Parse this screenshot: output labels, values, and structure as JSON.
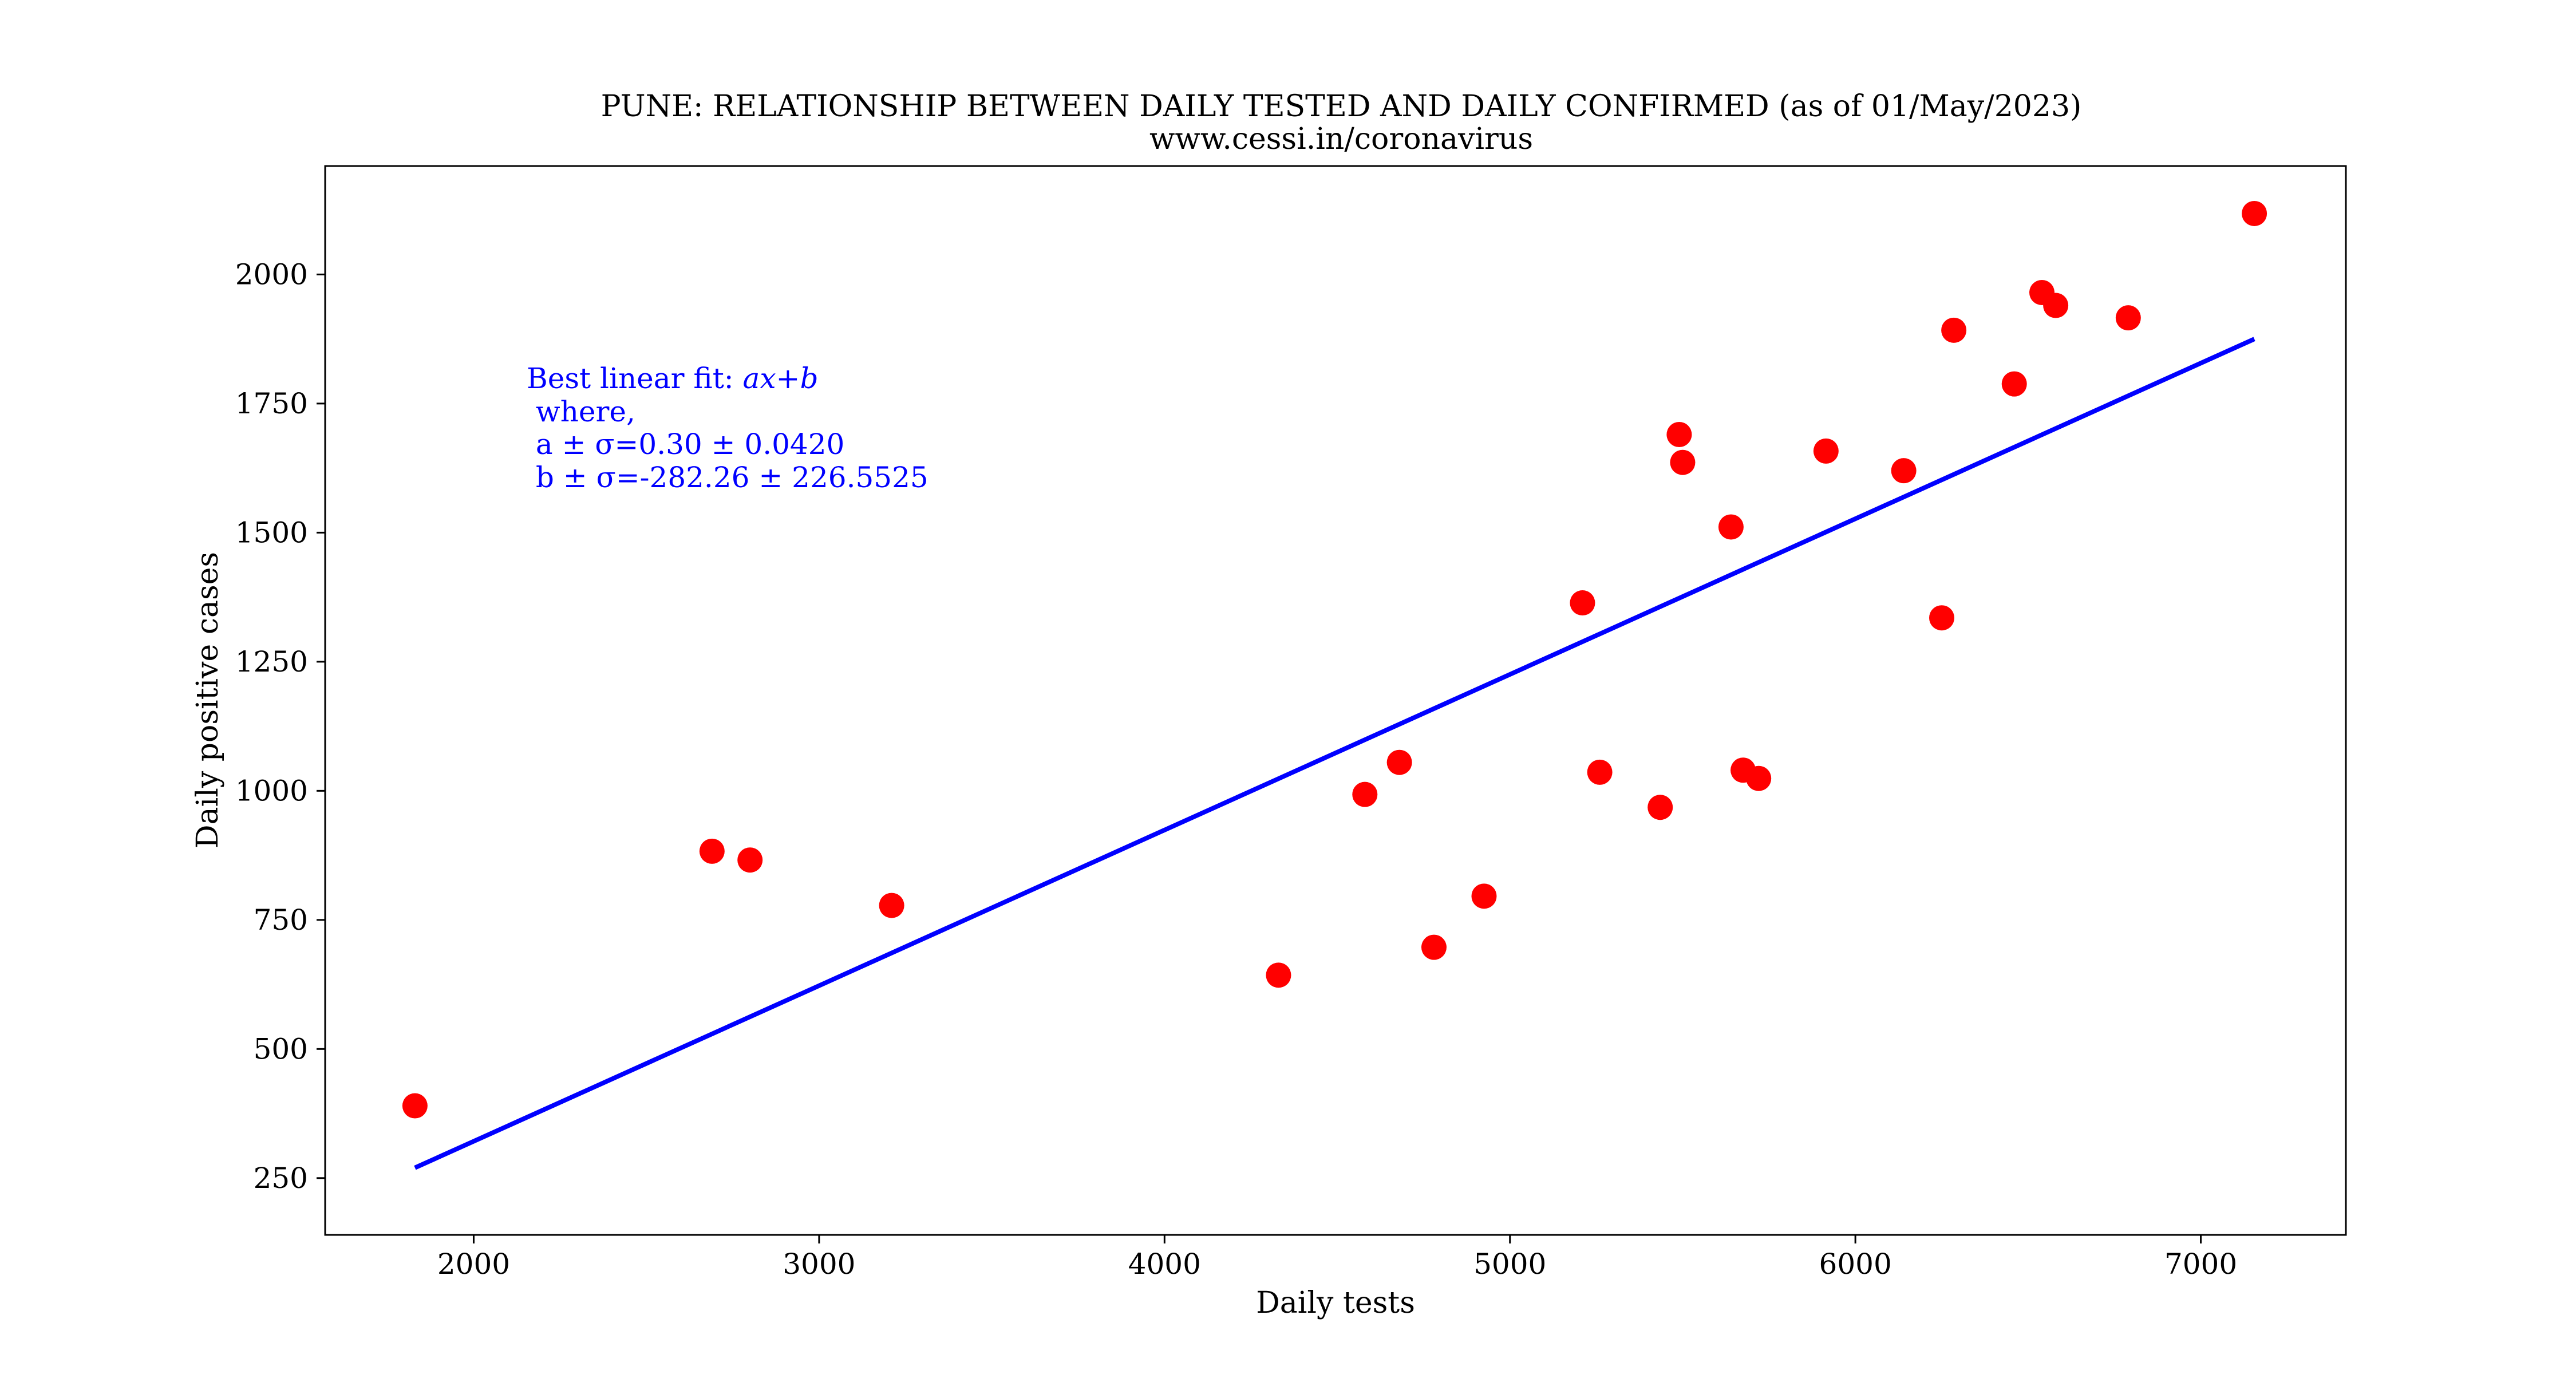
{
  "chart_data": {
    "type": "scatter",
    "title": "PUNE: RELATIONSHIP BETWEEN DAILY TESTED AND DAILY CONFIRMED (as of 01/May/2023)",
    "subtitle": "www.cessi.in/coronavirus",
    "xlabel": "Daily tests",
    "ylabel": "Daily positive cases",
    "xlim": [
      1570,
      7420
    ],
    "ylim": [
      140,
      2210
    ],
    "xticks": [
      2000,
      3000,
      4000,
      5000,
      6000,
      7000
    ],
    "yticks": [
      250,
      500,
      750,
      1000,
      1250,
      1500,
      1750,
      2000
    ],
    "grid": false,
    "marker_color": "#ff0000",
    "fit_color": "#0000ff",
    "points": [
      {
        "x": 1830,
        "y": 390
      },
      {
        "x": 2690,
        "y": 883
      },
      {
        "x": 2800,
        "y": 866
      },
      {
        "x": 3210,
        "y": 778
      },
      {
        "x": 4330,
        "y": 643
      },
      {
        "x": 4580,
        "y": 993
      },
      {
        "x": 4680,
        "y": 1055
      },
      {
        "x": 4780,
        "y": 697
      },
      {
        "x": 4925,
        "y": 796
      },
      {
        "x": 5210,
        "y": 1364
      },
      {
        "x": 5260,
        "y": 1036
      },
      {
        "x": 5435,
        "y": 968
      },
      {
        "x": 5490,
        "y": 1690
      },
      {
        "x": 5500,
        "y": 1636
      },
      {
        "x": 5640,
        "y": 1511
      },
      {
        "x": 5675,
        "y": 1040
      },
      {
        "x": 5720,
        "y": 1024
      },
      {
        "x": 5915,
        "y": 1658
      },
      {
        "x": 6140,
        "y": 1620
      },
      {
        "x": 6250,
        "y": 1335
      },
      {
        "x": 6285,
        "y": 1892
      },
      {
        "x": 6460,
        "y": 1788
      },
      {
        "x": 6540,
        "y": 1965
      },
      {
        "x": 6580,
        "y": 1940
      },
      {
        "x": 6790,
        "y": 1916
      },
      {
        "x": 7155,
        "y": 2118
      }
    ],
    "fit_line": {
      "x": [
        1830,
        7155
      ],
      "y": [
        270,
        1875
      ]
    },
    "annotation": {
      "line1_prefix": "Best linear fit: ",
      "line1_math": "ax+b",
      "line2": " where,",
      "line3": " a ± σ=0.30 ± 0.0420",
      "line4": " b ± σ=-282.26 ± 226.5525"
    }
  }
}
